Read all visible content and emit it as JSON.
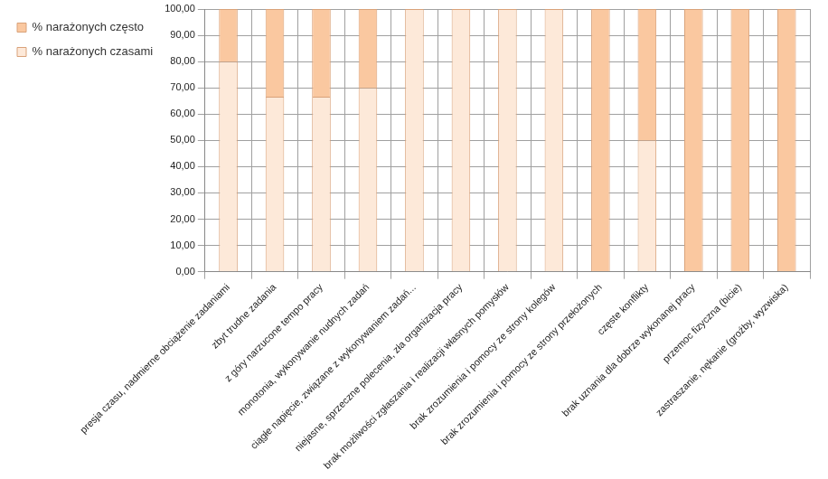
{
  "chart_data": {
    "type": "bar",
    "stacked": true,
    "grid": true,
    "legend": "left",
    "categories": [
      "presja czasu, nadmierne obciążenie zadaniami",
      "zbyt trudne zadania",
      "z góry narzucone tempo pracy",
      "monotonia, wykonywanie nudnych zadań",
      "ciągłe napięcie, związane z wykonywaniem zadań...",
      "niejasne, sprzeczne polecenia, zła organizacja pracy",
      "brak możliwości zgłaszania i realizacji własnych pomysłów",
      "brak zrozumienia i pomocy ze strony kolegów",
      "brak zrozumienia i pomocy ze strony przełożonych",
      "częste konflikty",
      "brak uznania dla dobrze wykonanej pracy",
      "przemoc fizyczna (bicie)",
      "zastraszanie, nękanie (groźby, wyzwiska)"
    ],
    "series": [
      {
        "name": "% narażonych czasami",
        "color": "#fde9d9",
        "values": [
          80,
          66.67,
          66.67,
          70,
          100,
          100,
          100,
          100,
          0,
          50,
          0,
          0,
          0
        ]
      },
      {
        "name": "% narażonych często",
        "color": "#fac8a0",
        "values": [
          20,
          33.33,
          33.33,
          30,
          0,
          0,
          0,
          0,
          100,
          50,
          100,
          100,
          100
        ]
      }
    ],
    "ylim": [
      0,
      100
    ],
    "yticks": [
      {
        "value": 0,
        "label": "0,00"
      },
      {
        "value": 10,
        "label": "10,00"
      },
      {
        "value": 20,
        "label": "20,00"
      },
      {
        "value": 30,
        "label": "30,00"
      },
      {
        "value": 40,
        "label": "40,00"
      },
      {
        "value": 50,
        "label": "50,00"
      },
      {
        "value": 60,
        "label": "60,00"
      },
      {
        "value": 70,
        "label": "70,00"
      },
      {
        "value": 80,
        "label": "80,00"
      },
      {
        "value": 90,
        "label": "90,00"
      },
      {
        "value": 100,
        "label": "100,00"
      }
    ]
  }
}
